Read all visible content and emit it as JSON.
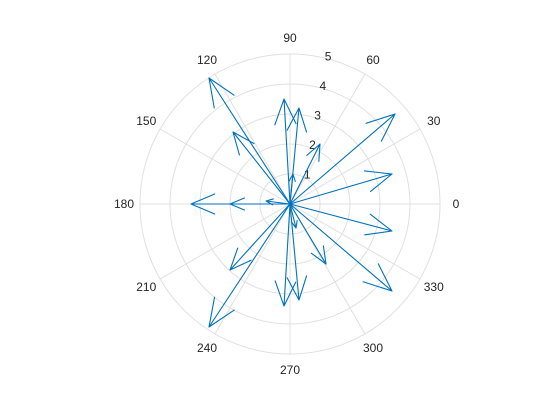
{
  "chart_data": {
    "type": "compass",
    "theta_ticks": [
      "0",
      "30",
      "60",
      "90",
      "120",
      "150",
      "180",
      "210",
      "240",
      "270",
      "300",
      "330"
    ],
    "r_ticks": [
      "1",
      "2",
      "3",
      "4",
      "5"
    ],
    "r_max": 5,
    "grid": true,
    "series": [
      {
        "color": "#0072bd",
        "vectors": [
          {
            "u": 0.1,
            "v": 1.0
          },
          {
            "u": 0.2,
            "v": -0.8
          },
          {
            "u": -0.8,
            "v": 0.1
          },
          {
            "u": 1.0,
            "v": 2.0
          },
          {
            "u": 0.3,
            "v": 3.2
          },
          {
            "u": -0.2,
            "v": 3.5
          },
          {
            "u": -1.9,
            "v": 2.4
          },
          {
            "u": -2.7,
            "v": 4.2
          },
          {
            "u": 3.5,
            "v": 3.0
          },
          {
            "u": 3.4,
            "v": 1.0
          },
          {
            "u": 3.4,
            "v": -0.9
          },
          {
            "u": 3.4,
            "v": -2.9
          },
          {
            "u": 1.2,
            "v": -2.0
          },
          {
            "u": 0.3,
            "v": -3.2
          },
          {
            "u": -0.2,
            "v": -3.4
          },
          {
            "u": -2.7,
            "v": -4.1
          },
          {
            "u": -2.0,
            "v": -2.2
          },
          {
            "u": -3.3,
            "v": 0.0
          },
          {
            "u": -2.0,
            "v": 0.0
          }
        ]
      }
    ]
  }
}
